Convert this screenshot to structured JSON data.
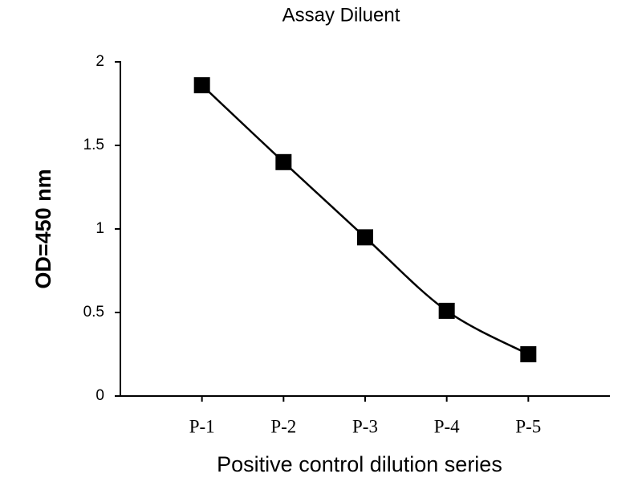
{
  "chart_data": {
    "type": "line",
    "title": "Assay Diluent",
    "x_label": "Positive control dilution series",
    "y_label": "OD=450 nm",
    "categories": [
      "P-1",
      "P-2",
      "P-3",
      "P-4",
      "P-5"
    ],
    "series": [
      {
        "name": "Assay Diluent",
        "color": "#000000",
        "values": [
          1.86,
          1.4,
          0.95,
          0.51,
          0.25
        ]
      }
    ],
    "ylim": [
      0,
      2
    ],
    "yticks": [
      0,
      0.5,
      1,
      1.5,
      2
    ],
    "grid": false,
    "smooth": true,
    "marker": "square"
  }
}
